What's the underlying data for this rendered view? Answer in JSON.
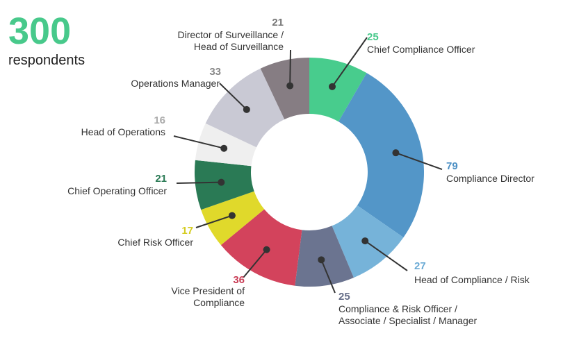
{
  "headline": {
    "total": "300",
    "total_label": "respondents"
  },
  "chart_data": {
    "type": "pie",
    "variant": "donut",
    "total": 300,
    "slices": [
      {
        "label": "Chief Compliance Officer",
        "value": 25,
        "color": "#48cc8d",
        "value_color": "#48c98b"
      },
      {
        "label": "Compliance Director",
        "value": 79,
        "color": "#5396c8",
        "value_color": "#4b8fc4"
      },
      {
        "label": "Head of Compliance / Risk",
        "value": 27,
        "color": "#76b3d9",
        "value_color": "#6aaad4"
      },
      {
        "label": "Compliance & Risk Officer / Associate / Specialist / Manager",
        "value": 25,
        "color": "#6b7490",
        "value_color": "#666e88"
      },
      {
        "label": "Vice President of Compliance",
        "value": 36,
        "color": "#d3435c",
        "value_color": "#c93d56"
      },
      {
        "label": "Chief Risk Officer",
        "value": 17,
        "color": "#e0d92b",
        "value_color": "#d4cc20"
      },
      {
        "label": "Chief Operating Officer",
        "value": 21,
        "color": "#2a7a55",
        "value_color": "#2a7a55"
      },
      {
        "label": "Head of Operations",
        "value": 16,
        "color": "#efefef",
        "value_color": "#aaaaaa"
      },
      {
        "label": "Operations Manager",
        "value": 33,
        "color": "#c9c9d4",
        "value_color": "#888888"
      },
      {
        "label": "Director of Surveillance / Head of Surveillance",
        "value": 21,
        "color": "#867d83",
        "value_color": "#777777"
      }
    ]
  }
}
